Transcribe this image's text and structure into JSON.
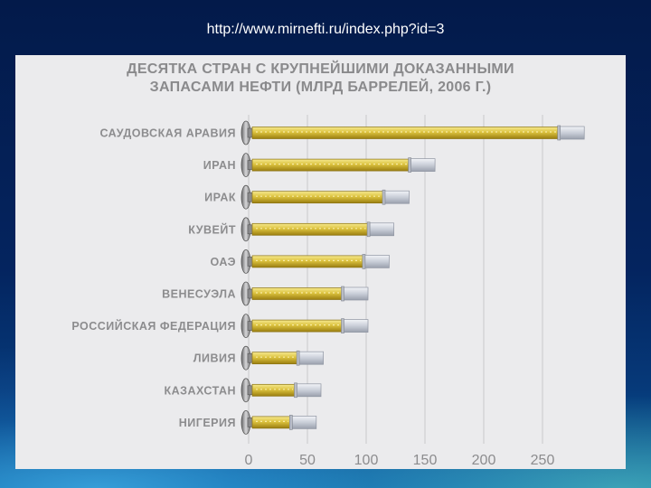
{
  "page": {
    "url_text": "http://www.mirnefti.ru/index.php?id=3"
  },
  "chart_data": {
    "type": "bar",
    "title_line1": "ДЕСЯТКА СТРАН С КРУПНЕЙШИМИ ДОКАЗАННЫМИ",
    "title_line2": "ЗАПАСАМИ НЕФТИ (МЛРД БАРРЕЛЕЙ, 2006 Г.)",
    "categories": [
      "САУДОВСКАЯ АРАВИЯ",
      "ИРАН",
      "ИРАК",
      "КУВЕЙТ",
      "ОАЭ",
      "ВЕНЕСУЭЛА",
      "РОССИЙСКАЯ ФЕДЕРАЦИЯ",
      "ЛИВИЯ",
      "КАЗАХСТАН",
      "НИГЕРИЯ"
    ],
    "values": [
      264,
      137,
      115,
      102,
      98,
      80,
      80,
      42,
      40,
      36
    ],
    "xlim": [
      0,
      270
    ],
    "xticks": [
      "0",
      "50",
      "100",
      "150",
      "200",
      "250"
    ],
    "xtick_values": [
      0,
      50,
      100,
      150,
      200,
      250
    ],
    "orientation": "horizontal",
    "grid": "vertical",
    "colors": {
      "bar": "#d8bf3a",
      "bar_light": "#f4e58a",
      "bar_dark": "#a88a14",
      "cap": "#d0d4de"
    }
  }
}
